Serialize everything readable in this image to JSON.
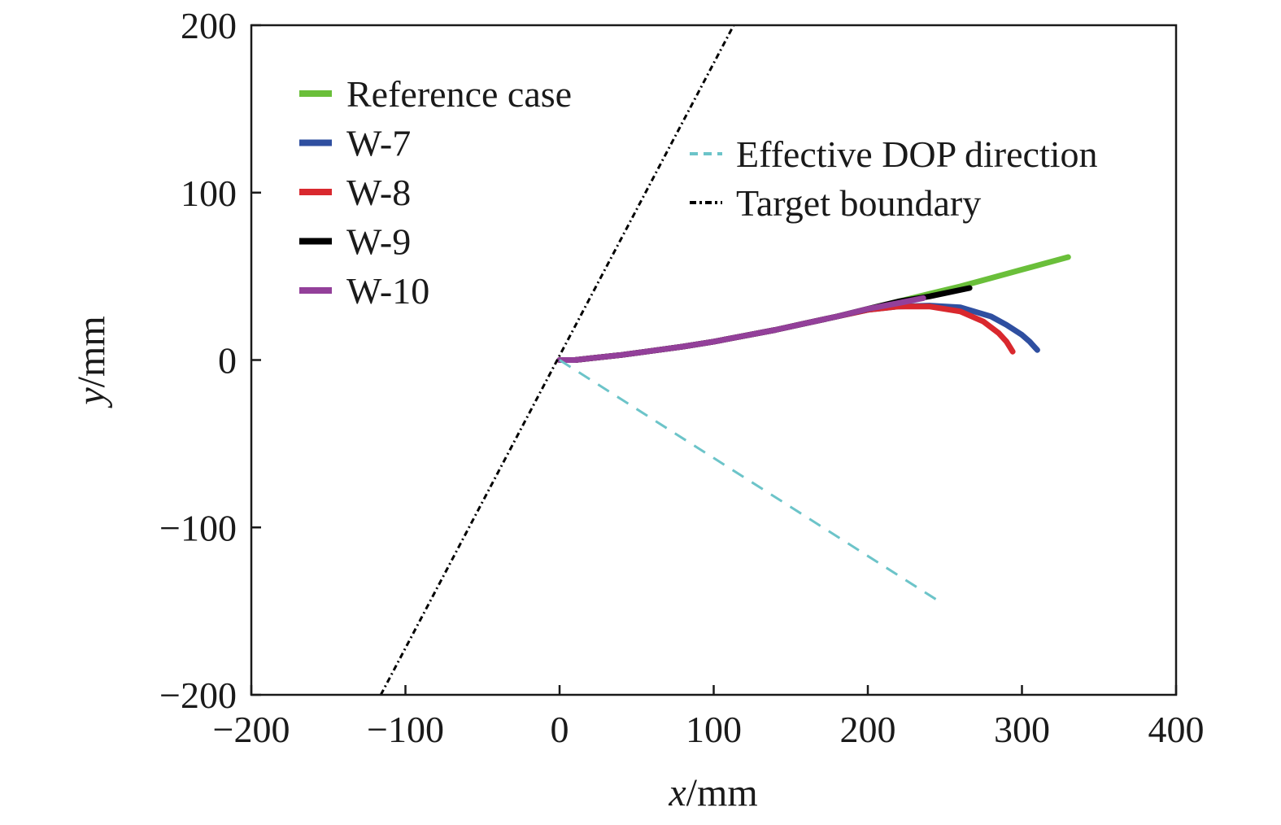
{
  "chart_data": {
    "type": "line",
    "xlabel": {
      "var": "x",
      "unit": "/mm"
    },
    "ylabel": {
      "var": "y",
      "unit": "/mm"
    },
    "xlim": [
      -200,
      400
    ],
    "ylim": [
      -200,
      200
    ],
    "xticks": [
      -200,
      -100,
      0,
      100,
      200,
      300,
      400
    ],
    "yticks": [
      -200,
      -100,
      0,
      100,
      200
    ],
    "xtick_labels": [
      "−200",
      "−100",
      "0",
      "100",
      "200",
      "300",
      "400"
    ],
    "ytick_labels": [
      "−200",
      "−100",
      "0",
      "100",
      "200"
    ],
    "grid": false,
    "legend_placement": "top-left",
    "legend2_placement": "top-right",
    "series": [
      {
        "name": "Reference case",
        "color": "#6abf3a",
        "style": "solid",
        "legend_group": 1,
        "x": [
          0,
          10,
          20,
          40,
          60,
          80,
          100,
          120,
          140,
          160,
          180,
          200,
          220,
          240,
          260,
          280,
          300,
          330
        ],
        "y": [
          0,
          0,
          1,
          3,
          5.5,
          8,
          11,
          14.5,
          18,
          22,
          26,
          30.5,
          35,
          39.5,
          44,
          49,
          54,
          61.5
        ]
      },
      {
        "name": "W-7",
        "color": "#2f4fa0",
        "style": "solid",
        "legend_group": 1,
        "x": [
          0,
          10,
          20,
          40,
          60,
          80,
          100,
          120,
          140,
          160,
          180,
          200,
          220,
          240,
          260,
          280,
          290,
          300,
          305,
          310
        ],
        "y": [
          0,
          0,
          1,
          3,
          5.5,
          8,
          11,
          14.5,
          18,
          22,
          26,
          30,
          32,
          32.5,
          31.5,
          26,
          21,
          15,
          11,
          6
        ]
      },
      {
        "name": "W-8",
        "color": "#d9282e",
        "style": "solid",
        "legend_group": 1,
        "x": [
          0,
          10,
          20,
          40,
          60,
          80,
          100,
          120,
          140,
          160,
          180,
          200,
          220,
          240,
          260,
          275,
          285,
          290,
          294
        ],
        "y": [
          0,
          0,
          1,
          3,
          5.5,
          8,
          11,
          14.5,
          18,
          22,
          26,
          30,
          32,
          32,
          29,
          23,
          16,
          11,
          5
        ]
      },
      {
        "name": "W-9",
        "color": "#000000",
        "style": "solid",
        "legend_group": 1,
        "x": [
          0,
          10,
          20,
          40,
          60,
          80,
          100,
          120,
          140,
          160,
          180,
          200,
          220,
          240,
          266
        ],
        "y": [
          0,
          0,
          1,
          3,
          5.5,
          8,
          11,
          14.5,
          18,
          22,
          26,
          30.5,
          35,
          38,
          43
        ]
      },
      {
        "name": "W-10",
        "color": "#93409a",
        "style": "solid",
        "legend_group": 1,
        "x": [
          0,
          10,
          20,
          40,
          60,
          80,
          100,
          120,
          140,
          160,
          180,
          200,
          220,
          236
        ],
        "y": [
          0,
          0,
          1,
          3,
          5.5,
          8,
          11,
          14.5,
          18,
          22,
          26,
          30.5,
          34,
          37
        ]
      },
      {
        "name": "Effective DOP direction",
        "color": "#6cc4c9",
        "style": "dashed",
        "legend_group": 2,
        "x": [
          0,
          246
        ],
        "y": [
          0,
          -144
        ]
      },
      {
        "name": "Target boundary",
        "color": "#000000",
        "style": "dotted",
        "legend_group": 2,
        "x": [
          -116,
          113
        ],
        "y": [
          -200,
          200
        ]
      }
    ]
  }
}
